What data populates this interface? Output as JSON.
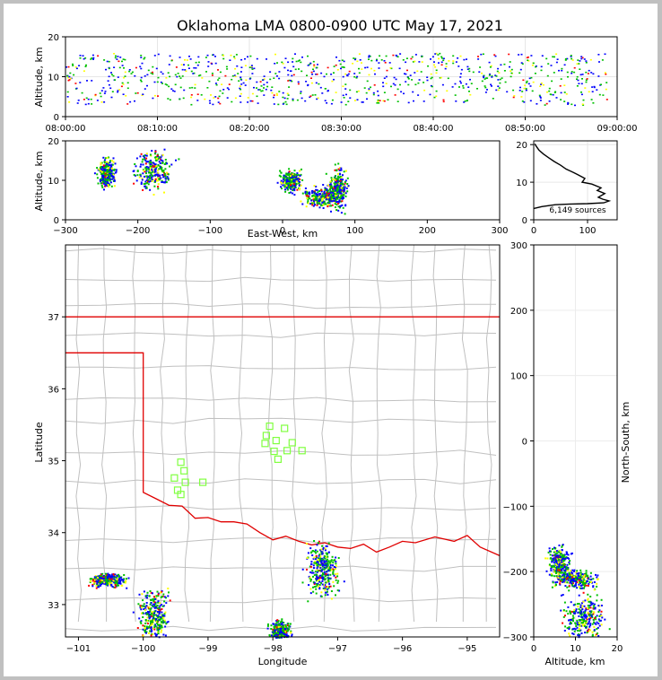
{
  "chart_data": [
    {
      "id": "altitude-time",
      "type": "scatter",
      "title": "Oklahoma LMA 0800-0900 UTC May 17, 2021",
      "xlabel": "",
      "ylabel": "Altitude, km",
      "xlim": [
        "08:00:00",
        "09:00:00"
      ],
      "ylim": [
        0,
        20
      ],
      "xticks": [
        "08:00:00",
        "08:10:00",
        "08:20:00",
        "08:30:00",
        "08:40:00",
        "08:50:00",
        "09:00:00"
      ],
      "yticks": [
        "0",
        "10",
        "20"
      ],
      "grid": true,
      "clusters": [
        {
          "x_min": "08:00:00",
          "x_max": "08:59:00",
          "alt_min": 3,
          "alt_max": 16
        }
      ]
    },
    {
      "id": "altitude-eastwest",
      "type": "heatmap",
      "xlabel": "East-West, km",
      "ylabel": "Altitude, km",
      "xlim": [
        -300,
        300
      ],
      "ylim": [
        0,
        20
      ],
      "xticks": [
        "−300",
        "−200",
        "−100",
        "0",
        "100",
        "200",
        "300"
      ],
      "yticks": [
        "0",
        "10",
        "20"
      ],
      "clusters": [
        {
          "x": -245,
          "alt": 12,
          "dx": 10,
          "dalt": 3
        },
        {
          "x": -180,
          "alt": 13,
          "dx": 20,
          "dalt": 4
        },
        {
          "x": 10,
          "alt": 10,
          "dx": 10,
          "dalt": 2
        },
        {
          "x": 55,
          "alt": 6,
          "dx": 20,
          "dalt": 2
        },
        {
          "x": 75,
          "alt": 8,
          "dx": 10,
          "dalt": 4
        }
      ]
    },
    {
      "id": "altitude-histogram",
      "type": "line",
      "xlim": [
        0,
        155
      ],
      "ylim": [
        0,
        21
      ],
      "xticks": [
        "0",
        "100"
      ],
      "yticks": [
        "0",
        "10",
        "20"
      ],
      "annotation": "6,149 sources",
      "profile": [
        [
          0,
          3
        ],
        [
          15,
          3.5
        ],
        [
          40,
          4
        ],
        [
          70,
          4.2
        ],
        [
          100,
          4.3
        ],
        [
          130,
          4.5
        ],
        [
          140,
          5
        ],
        [
          128,
          5.5
        ],
        [
          120,
          6
        ],
        [
          132,
          7
        ],
        [
          118,
          7.8
        ],
        [
          125,
          8.5
        ],
        [
          108,
          9.5
        ],
        [
          90,
          10
        ],
        [
          95,
          11
        ],
        [
          82,
          12
        ],
        [
          75,
          12.5
        ],
        [
          60,
          13.5
        ],
        [
          50,
          14.5
        ],
        [
          38,
          15.5
        ],
        [
          28,
          16.5
        ],
        [
          18,
          17.5
        ],
        [
          10,
          18.5
        ],
        [
          5,
          19.5
        ],
        [
          2,
          20.2
        ]
      ]
    },
    {
      "id": "map",
      "type": "scatter",
      "xlabel": "Longitude",
      "ylabel": "Latitude",
      "xlim": [
        -101.2,
        -94.5
      ],
      "ylim": [
        32.55,
        38.0
      ],
      "xticks": [
        "−101",
        "−100",
        "−99",
        "−98",
        "−97",
        "−96",
        "−95"
      ],
      "yticks": [
        "33",
        "34",
        "35",
        "36",
        "37"
      ],
      "stations": [
        [
          -98.05,
          35.48
        ],
        [
          -97.82,
          35.45
        ],
        [
          -98.1,
          35.35
        ],
        [
          -97.95,
          35.28
        ],
        [
          -98.12,
          35.24
        ],
        [
          -97.7,
          35.25
        ],
        [
          -97.78,
          35.14
        ],
        [
          -97.98,
          35.13
        ],
        [
          -97.55,
          35.14
        ],
        [
          -97.92,
          35.02
        ],
        [
          -99.42,
          34.98
        ],
        [
          -99.37,
          34.86
        ],
        [
          -99.52,
          34.76
        ],
        [
          -99.35,
          34.7
        ],
        [
          -99.08,
          34.7
        ],
        [
          -99.47,
          34.59
        ],
        [
          -99.42,
          34.53
        ]
      ],
      "clusters": [
        {
          "lon": -100.55,
          "lat": 33.35,
          "dlon": 0.2,
          "dlat": 0.07
        },
        {
          "lon": -99.85,
          "lat": 32.85,
          "dlon": 0.18,
          "dlat": 0.3
        },
        {
          "lon": -97.9,
          "lat": 32.65,
          "dlon": 0.12,
          "dlat": 0.1
        },
        {
          "lon": -97.25,
          "lat": 33.5,
          "dlon": 0.2,
          "dlat": 0.3
        }
      ]
    },
    {
      "id": "northsouth-altitude",
      "type": "heatmap",
      "xlabel": "Altitude, km",
      "ylabel": "North-South, km",
      "xlim": [
        0,
        20
      ],
      "ylim": [
        -300,
        300
      ],
      "xticks": [
        "0",
        "10",
        "20"
      ],
      "yticks": [
        "−300",
        "−200",
        "−100",
        "0",
        "100",
        "200",
        "300"
      ],
      "clusters": [
        {
          "alt": 6,
          "y": -185,
          "dalt": 2,
          "dy": 20
        },
        {
          "alt": 10,
          "y": -210,
          "dalt": 4,
          "dy": 10
        },
        {
          "alt": 12,
          "y": -270,
          "dalt": 4,
          "dy": 30
        }
      ]
    }
  ],
  "colors": {
    "low": "#0000ff",
    "mid": "#00c000",
    "high": "#ffff00",
    "peak": "#ff0000",
    "state_border": "#e00000",
    "county": "#c0c0c0",
    "station": "#80ff40"
  }
}
